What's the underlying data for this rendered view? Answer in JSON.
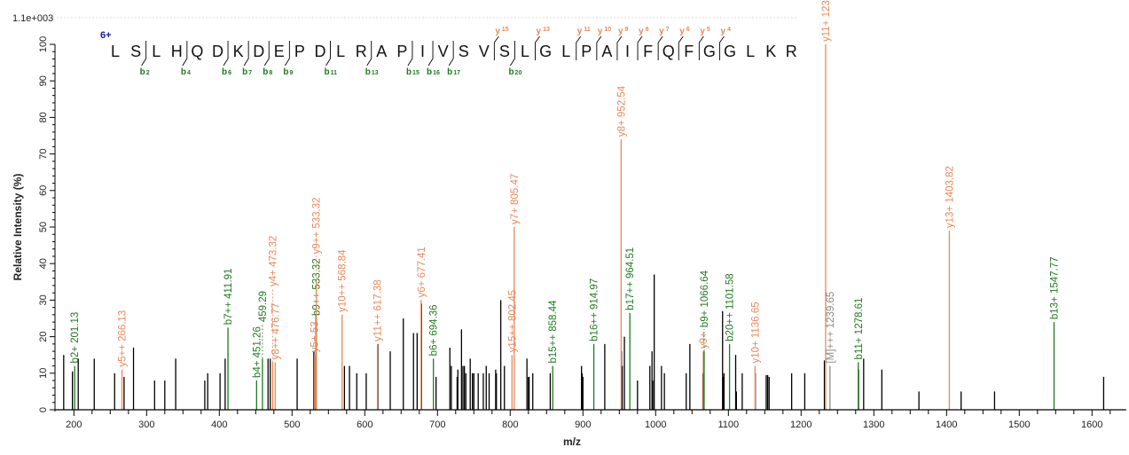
{
  "chart_data": {
    "type": "bar",
    "title": "",
    "scale_label": "1.1e+003",
    "charge_label": "6+",
    "xlabel": "m/z",
    "ylabel": "Relative   Intensity (%)",
    "xlim": [
      184,
      1647
    ],
    "ylim": [
      0,
      100
    ],
    "x_ticks": [
      200,
      300,
      400,
      500,
      600,
      700,
      800,
      900,
      1000,
      1100,
      1200,
      1300,
      1400,
      1500,
      1600
    ],
    "y_ticks": [
      0,
      10,
      20,
      30,
      40,
      50,
      60,
      70,
      80,
      90,
      100
    ],
    "grid": false,
    "colors": {
      "b": "#1f7a1f",
      "y": "#e8885a",
      "M": "#8a8a8a",
      "unassigned": "#000000",
      "charge": "#1a1a9a"
    },
    "sequence": "LSLHQDKDEPDLRAPIVSVSLGLPAIFQFGGLKR",
    "b_ions": [
      2,
      4,
      6,
      7,
      8,
      9,
      11,
      13,
      15,
      16,
      17,
      20
    ],
    "y_ions": [
      15,
      13,
      11,
      10,
      9,
      8,
      7,
      6,
      5,
      4
    ],
    "unassigned_peaks": [
      [
        186,
        15
      ],
      [
        198,
        10.5
      ],
      [
        206,
        14
      ],
      [
        228,
        14
      ],
      [
        256,
        10
      ],
      [
        269,
        9
      ],
      [
        282,
        17
      ],
      [
        311,
        8
      ],
      [
        325,
        8
      ],
      [
        340,
        14
      ],
      [
        380,
        8
      ],
      [
        384,
        10
      ],
      [
        401,
        10
      ],
      [
        408,
        14
      ],
      [
        467,
        14
      ],
      [
        470,
        14
      ],
      [
        507,
        14
      ],
      [
        530,
        16
      ],
      [
        533,
        26
      ],
      [
        572,
        12
      ],
      [
        579,
        12
      ],
      [
        589,
        10
      ],
      [
        602,
        10
      ],
      [
        618,
        18
      ],
      [
        635,
        16
      ],
      [
        653,
        25
      ],
      [
        667,
        21
      ],
      [
        672,
        21
      ],
      [
        678,
        29
      ],
      [
        698,
        9
      ],
      [
        717,
        17
      ],
      [
        719,
        12
      ],
      [
        727,
        9
      ],
      [
        728,
        11
      ],
      [
        733,
        22
      ],
      [
        735,
        12
      ],
      [
        737,
        12
      ],
      [
        739,
        10
      ],
      [
        745,
        14
      ],
      [
        748,
        10
      ],
      [
        750,
        10
      ],
      [
        756,
        10
      ],
      [
        763,
        10
      ],
      [
        767,
        12
      ],
      [
        771,
        10
      ],
      [
        780,
        11
      ],
      [
        781,
        10
      ],
      [
        787,
        30
      ],
      [
        792,
        12
      ],
      [
        823,
        14
      ],
      [
        825,
        9
      ],
      [
        826,
        9
      ],
      [
        831,
        10
      ],
      [
        855,
        10
      ],
      [
        898,
        12
      ],
      [
        899,
        10
      ],
      [
        900,
        9
      ],
      [
        930,
        18
      ],
      [
        953,
        16
      ],
      [
        954,
        12
      ],
      [
        957,
        20
      ],
      [
        975,
        8
      ],
      [
        992,
        12
      ],
      [
        995,
        16
      ],
      [
        996,
        8
      ],
      [
        998,
        37
      ],
      [
        1008,
        12
      ],
      [
        1012,
        10
      ],
      [
        1042,
        10
      ],
      [
        1047,
        18
      ],
      [
        1065,
        10
      ],
      [
        1092,
        27
      ],
      [
        1093,
        9
      ],
      [
        1094,
        10
      ],
      [
        1110,
        15
      ],
      [
        1111,
        5
      ],
      [
        1119,
        10
      ],
      [
        1137,
        10
      ],
      [
        1152,
        9.5
      ],
      [
        1154,
        9.5
      ],
      [
        1156,
        9
      ],
      [
        1187,
        10
      ],
      [
        1205,
        10
      ],
      [
        1232,
        13.5
      ],
      [
        1279,
        11
      ],
      [
        1286,
        14
      ],
      [
        1311,
        11
      ],
      [
        1362,
        5
      ],
      [
        1420,
        5
      ],
      [
        1466,
        5
      ],
      [
        1616,
        9
      ]
    ],
    "annotated_peaks": [
      {
        "mz": 201.13,
        "intensity": 12,
        "ion": "b",
        "label": "b2+ 201.13"
      },
      {
        "mz": 266.13,
        "intensity": 11,
        "ion": "y",
        "label": "y5++ 266.13"
      },
      {
        "mz": 411.91,
        "intensity": 22.5,
        "ion": "b",
        "label": "b7++ 411.91"
      },
      {
        "mz": 451.26,
        "intensity": 8,
        "ion": "b",
        "label": "b4+ 451.26"
      },
      {
        "mz": 459.29,
        "intensity": 14,
        "ion": "b",
        "label": "459.29"
      },
      {
        "mz": 473.32,
        "intensity": 13,
        "ion": "y",
        "label": "y4+ 473.32"
      },
      {
        "mz": 476.77,
        "intensity": 13,
        "ion": "y",
        "label": "y8++ 476.77"
      },
      {
        "mz": 531,
        "intensity": 15,
        "ion": "y",
        "label": "y5+ 53"
      },
      {
        "mz": 533.32,
        "intensity": 25,
        "ion": "b",
        "label": "b9++ 533.32"
      },
      {
        "mz": 533.32,
        "intensity": 35,
        "ion": "y",
        "label": "y9++ 533.32"
      },
      {
        "mz": 568.84,
        "intensity": 26,
        "ion": "y",
        "label": "y10++ 568.84"
      },
      {
        "mz": 617.38,
        "intensity": 18,
        "ion": "y",
        "label": "y11++ 617.38"
      },
      {
        "mz": 677.41,
        "intensity": 30,
        "ion": "y",
        "label": "y6+ 677.41"
      },
      {
        "mz": 694.36,
        "intensity": 14,
        "ion": "b",
        "label": "b6+ 694.36"
      },
      {
        "mz": 802.45,
        "intensity": 15,
        "ion": "y",
        "label": "y15++ 802.45"
      },
      {
        "mz": 805.47,
        "intensity": 50,
        "ion": "y",
        "label": "y7+ 805.47"
      },
      {
        "mz": 858.44,
        "intensity": 12,
        "ion": "b",
        "label": "b15++ 858.44"
      },
      {
        "mz": 914.97,
        "intensity": 18,
        "ion": "b",
        "label": "b16++ 914.97"
      },
      {
        "mz": 952.54,
        "intensity": 74,
        "ion": "y",
        "label": "y8+ 952.54"
      },
      {
        "mz": 964.51,
        "intensity": 26.5,
        "ion": "b",
        "label": "b17++ 964.51"
      },
      {
        "mz": 1065.5,
        "intensity": 16,
        "ion": "y",
        "label": "y9+"
      },
      {
        "mz": 1066.64,
        "intensity": 16,
        "ion": "b",
        "label": "b9+ 1066.64"
      },
      {
        "mz": 1101.58,
        "intensity": 18,
        "ion": "b",
        "label": "b20++ 1101.58"
      },
      {
        "mz": 1136.65,
        "intensity": 12,
        "ion": "y",
        "label": "y10+ 1136.65"
      },
      {
        "mz": 1233.7,
        "intensity": 100,
        "ion": "y",
        "label": "y11+ 1233.70"
      },
      {
        "mz": 1239.65,
        "intensity": 12,
        "ion": "M",
        "label": "[M]+++ 1239.65"
      },
      {
        "mz": 1278.61,
        "intensity": 13,
        "ion": "b",
        "label": "b11+ 1278.61"
      },
      {
        "mz": 1403.82,
        "intensity": 49,
        "ion": "y",
        "label": "y13+ 1403.82"
      },
      {
        "mz": 1547.77,
        "intensity": 24,
        "ion": "b",
        "label": "b13+ 1547.77"
      }
    ]
  }
}
